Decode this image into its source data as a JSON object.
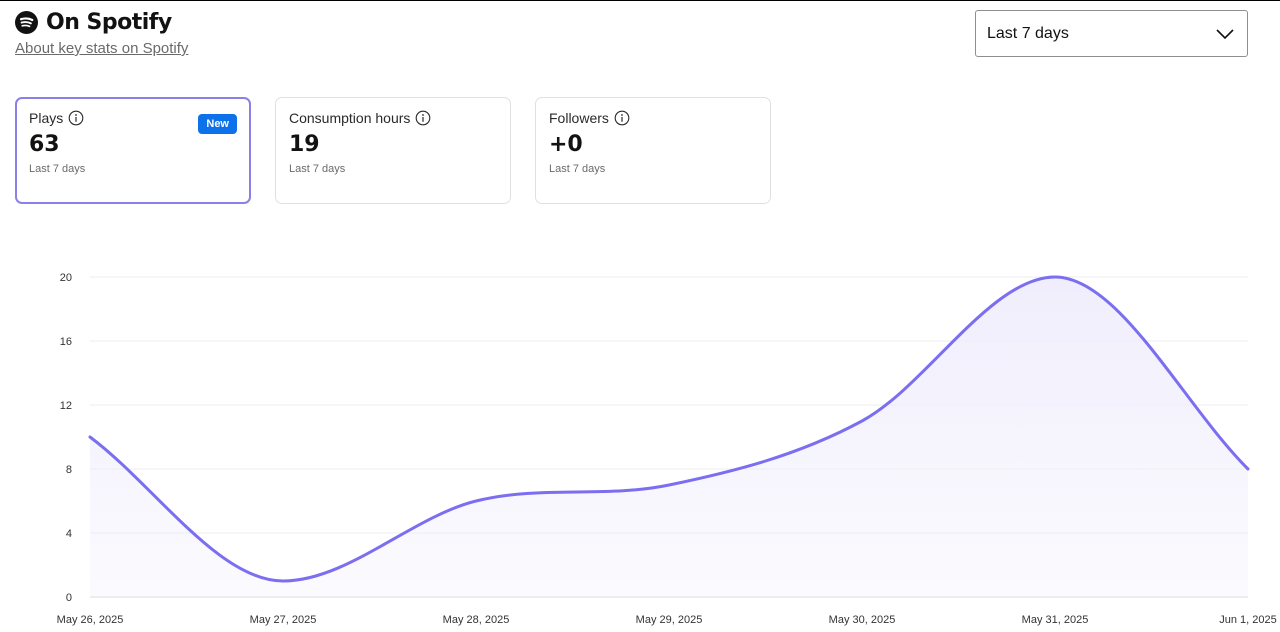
{
  "header": {
    "title": "On Spotify",
    "about_link": "About key stats on Spotify",
    "logo_icon": "spotify-logo-icon"
  },
  "range_selector": {
    "value": "Last 7 days",
    "icon": "chevron-down-icon"
  },
  "cards": [
    {
      "label": "Plays",
      "value": "63",
      "sub": "Last 7 days",
      "badge": "New",
      "active": true
    },
    {
      "label": "Consumption hours",
      "value": "19",
      "sub": "Last 7 days"
    },
    {
      "label": "Followers",
      "value": "+0",
      "sub": "Last 7 days"
    }
  ],
  "colors": {
    "line": "#7b6ef0",
    "fill": "#f0eefc",
    "active_border": "#8b7fe8",
    "badge": "#0d72ea"
  },
  "chart_data": {
    "type": "area",
    "x": [
      "May 26, 2025",
      "May 27, 2025",
      "May 28, 2025",
      "May 29, 2025",
      "May 30, 2025",
      "May 31, 2025",
      "Jun 1, 2025"
    ],
    "values": [
      10,
      1,
      6,
      7,
      11,
      20,
      8
    ],
    "ylim": [
      0,
      20
    ],
    "yticks": [
      "0",
      "4",
      "8",
      "12",
      "16",
      "20"
    ],
    "grid": true,
    "title": "",
    "xlabel": "",
    "ylabel": ""
  }
}
